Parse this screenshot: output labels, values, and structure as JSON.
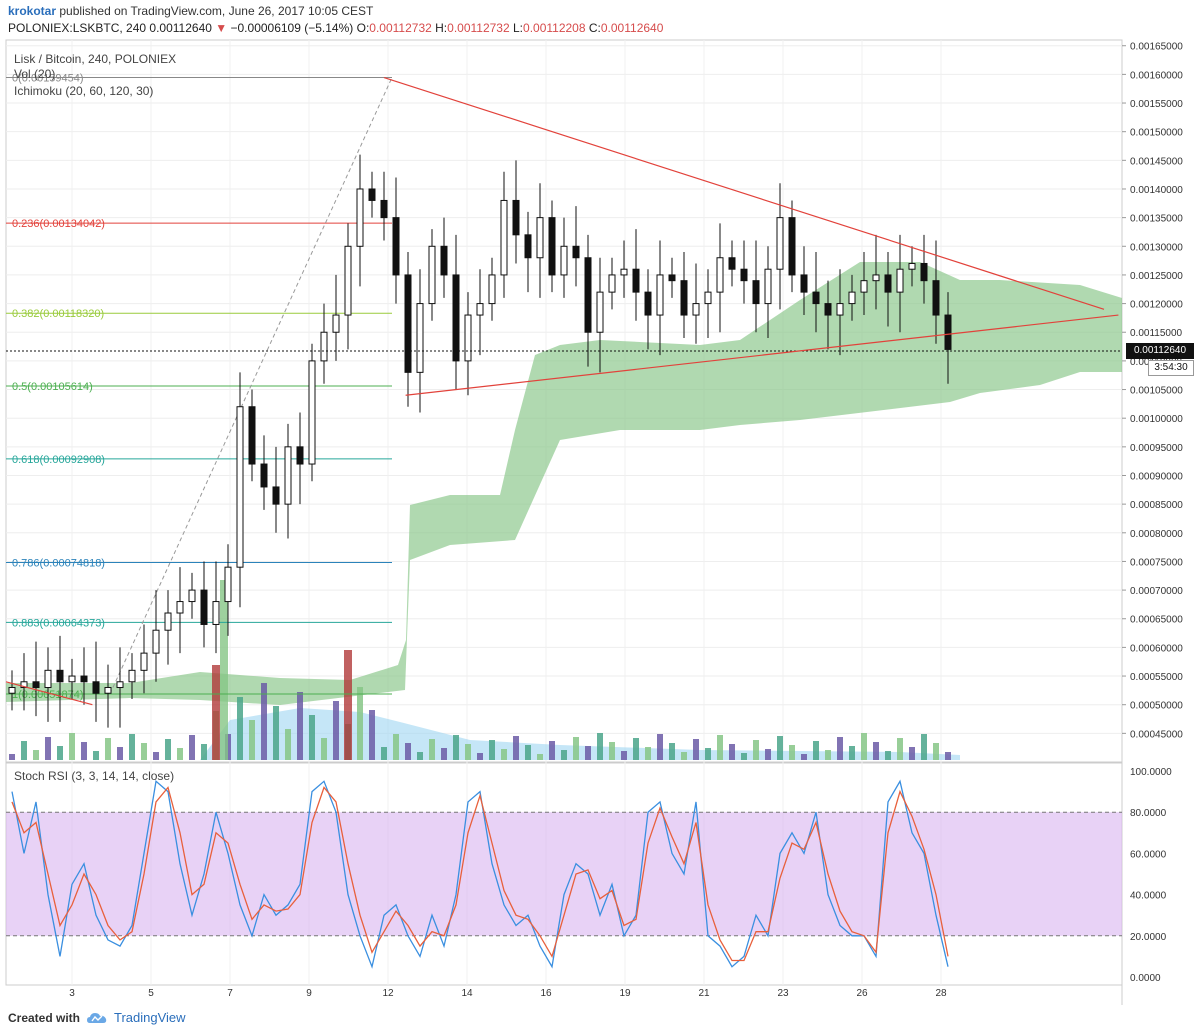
{
  "header": {
    "user": "krokotar",
    "published": "published on TradingView.com, June 26, 2017 10:05 CEST",
    "symbol": "POLONIEX:LSKBTC, 240",
    "last": "0.00112640",
    "change": "−0.00006109 (−5.14%)",
    "o_label": "O:",
    "o": "0.00112732",
    "h_label": "H:",
    "h": "0.00112732",
    "l_label": "L:",
    "l": "0.00112208",
    "c_label": "C:",
    "c": "0.00112640"
  },
  "legend": {
    "title": "Lisk / Bitcoin, 240, POLONIEX",
    "vol": "Vol (20)",
    "ichimoku": "Ichimoku (20, 60, 120, 30)",
    "stoch": "Stoch RSI (3, 3, 14, 14, close)"
  },
  "price_box": "0.00112640",
  "time_box": "3:54:30",
  "footer": {
    "created": "Created with",
    "brand": "TradingView"
  },
  "colors": {
    "up": "#ffffff",
    "down": "#111111",
    "cloud": "#86c586",
    "trend": "#e2423b",
    "stoch_k": "#3a8fe0",
    "stoch_d": "#e8603c",
    "stoch_band": "#d8b4f0"
  },
  "chart_data": [
    {
      "type": "candlestick",
      "title": "Lisk / Bitcoin, 240, POLONIEX",
      "ylim": [
        0.0004,
        0.00166
      ],
      "yticks": [
        "0.00165000",
        "0.00160000",
        "0.00155000",
        "0.00150000",
        "0.00145000",
        "0.00140000",
        "0.00135000",
        "0.00130000",
        "0.00125000",
        "0.00120000",
        "0.00115000",
        "0.00110000",
        "0.00105000",
        "0.00100000",
        "0.00095000",
        "0.00090000",
        "0.00085000",
        "0.00080000",
        "0.00075000",
        "0.00070000",
        "0.00065000",
        "0.00060000",
        "0.00055000",
        "0.00050000",
        "0.00045000"
      ],
      "xticks": [
        "3",
        "5",
        "7",
        "9",
        "12",
        "14",
        "16",
        "19",
        "21",
        "23",
        "26",
        "28"
      ],
      "fib_levels": [
        {
          "label": "0(0.00159454)",
          "value": 0.00159454
        },
        {
          "label": "0.236(0.00134042)",
          "value": 0.00134042
        },
        {
          "label": "0.382(0.00118320)",
          "value": 0.0011832
        },
        {
          "label": "0.5(0.00105614)",
          "value": 0.00105614
        },
        {
          "label": "0.618(0.00092908)",
          "value": 0.00092908
        },
        {
          "label": "0.786(0.00074818)",
          "value": 0.00074818
        },
        {
          "label": "0.883(0.00064373)",
          "value": 0.00064373
        },
        {
          "label": "1(0.00051874)",
          "value": 0.00051874
        }
      ],
      "close_series": [
        0.00053,
        0.00054,
        0.00053,
        0.00056,
        0.00054,
        0.00055,
        0.00054,
        0.00052,
        0.00053,
        0.00054,
        0.00056,
        0.00059,
        0.00063,
        0.00066,
        0.00068,
        0.0007,
        0.00064,
        0.00068,
        0.00074,
        0.00102,
        0.00092,
        0.00088,
        0.00085,
        0.00095,
        0.00092,
        0.0011,
        0.00115,
        0.00118,
        0.0013,
        0.0014,
        0.00138,
        0.00135,
        0.00125,
        0.00108,
        0.0012,
        0.0013,
        0.00125,
        0.0011,
        0.00118,
        0.0012,
        0.00125,
        0.00138,
        0.00132,
        0.00128,
        0.00135,
        0.00125,
        0.0013,
        0.00128,
        0.00115,
        0.00122,
        0.00125,
        0.00126,
        0.00122,
        0.00118,
        0.00125,
        0.00124,
        0.00118,
        0.0012,
        0.00122,
        0.00128,
        0.00126,
        0.00124,
        0.0012,
        0.00126,
        0.00135,
        0.00125,
        0.00122,
        0.0012,
        0.00118,
        0.0012,
        0.00122,
        0.00124,
        0.00125,
        0.00122,
        0.00126,
        0.00127,
        0.00124,
        0.00118,
        0.00112
      ],
      "trendlines": [
        {
          "from": [
            10.5,
            0.00159454
          ],
          "to": [
            30.5,
            0.00119
          ]
        },
        {
          "from": [
            11.1,
            0.00104
          ],
          "to": [
            30.9,
            0.00118
          ]
        },
        {
          "from": [
            0.0,
            0.00054
          ],
          "to": [
            2.4,
            0.0005
          ]
        }
      ]
    },
    {
      "type": "line",
      "title": "Stoch RSI (3, 3, 14, 14, close)",
      "ylim": [
        0,
        100
      ],
      "yticks": [
        "100.0000",
        "80.0000",
        "60.0000",
        "40.0000",
        "20.0000",
        "0.0000"
      ],
      "band": [
        20,
        80
      ],
      "series": [
        {
          "name": "K",
          "values": [
            90,
            60,
            85,
            40,
            10,
            45,
            55,
            30,
            18,
            15,
            25,
            60,
            95,
            90,
            55,
            30,
            50,
            80,
            60,
            35,
            20,
            40,
            30,
            35,
            45,
            90,
            95,
            80,
            40,
            20,
            5,
            30,
            35,
            20,
            10,
            30,
            15,
            40,
            85,
            90,
            55,
            35,
            25,
            30,
            15,
            5,
            40,
            55,
            50,
            30,
            45,
            20,
            30,
            80,
            85,
            60,
            50,
            85,
            20,
            15,
            5,
            10,
            30,
            20,
            60,
            70,
            60,
            80,
            40,
            25,
            20,
            20,
            10,
            85,
            95,
            70,
            60,
            30,
            5
          ]
        },
        {
          "name": "D",
          "values": [
            85,
            70,
            75,
            50,
            25,
            35,
            50,
            40,
            25,
            18,
            22,
            50,
            85,
            92,
            70,
            40,
            45,
            70,
            65,
            45,
            28,
            35,
            32,
            33,
            40,
            75,
            92,
            85,
            55,
            30,
            12,
            22,
            32,
            25,
            15,
            22,
            20,
            35,
            70,
            88,
            65,
            42,
            30,
            28,
            20,
            10,
            30,
            50,
            52,
            38,
            42,
            25,
            28,
            65,
            82,
            68,
            55,
            75,
            35,
            18,
            8,
            8,
            22,
            22,
            48,
            65,
            62,
            75,
            50,
            32,
            22,
            20,
            12,
            70,
            90,
            78,
            62,
            40,
            10
          ]
        }
      ]
    }
  ]
}
